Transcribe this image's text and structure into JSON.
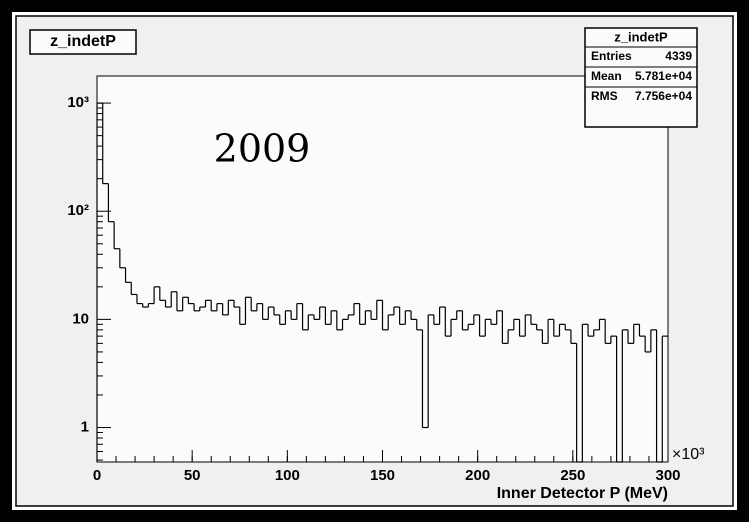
{
  "chart_data": {
    "type": "histogram",
    "title": "z_indetP",
    "annotation": "2009",
    "x_label": "Inner Detector P (MeV)",
    "x_multiplier": "×10³",
    "log_y": true,
    "color": "#000000",
    "xlim": [
      0,
      300
    ],
    "xticks": [
      0,
      50,
      100,
      150,
      200,
      250,
      300
    ],
    "ylim": [
      0.48,
      1780
    ],
    "yticks": [
      1,
      10,
      {
        "value": 100,
        "label": "10²"
      },
      {
        "value": 1000,
        "label": "10³"
      }
    ],
    "stats": {
      "title": "z_indetP",
      "rows": [
        [
          "Entries",
          "4339"
        ],
        [
          "Mean",
          "5.781e+04"
        ],
        [
          "RMS",
          "7.756e+04"
        ]
      ]
    },
    "bins": [
      0,
      3,
      6,
      9,
      12,
      15,
      18,
      21,
      24,
      27,
      30,
      33,
      36,
      39,
      42,
      45,
      48,
      51,
      54,
      57,
      60,
      63,
      66,
      69,
      72,
      75,
      78,
      81,
      84,
      87,
      90,
      93,
      96,
      99,
      102,
      105,
      108,
      111,
      114,
      117,
      120,
      123,
      126,
      129,
      132,
      135,
      138,
      141,
      144,
      147,
      150,
      153,
      156,
      159,
      162,
      165,
      168,
      171,
      174,
      177,
      180,
      183,
      186,
      189,
      192,
      195,
      198,
      201,
      204,
      207,
      210,
      213,
      216,
      219,
      222,
      225,
      228,
      231,
      234,
      237,
      240,
      243,
      246,
      249,
      252,
      255,
      258,
      261,
      264,
      267,
      270,
      273,
      276,
      279,
      282,
      285,
      288,
      291,
      294,
      297,
      300
    ],
    "values": [
      1000,
      180,
      80,
      45,
      30,
      22,
      17,
      14,
      13,
      14,
      20,
      15,
      13,
      18,
      12,
      16,
      14,
      12,
      13,
      15,
      12,
      14,
      11,
      15,
      13,
      9,
      16,
      12,
      14,
      10,
      13,
      11,
      9,
      12,
      10,
      14,
      8,
      11,
      10,
      13,
      9,
      12,
      8,
      10,
      11,
      14,
      9,
      12,
      10,
      15,
      8,
      11,
      13,
      9,
      12,
      10,
      8,
      1,
      11,
      9,
      13,
      7,
      10,
      12,
      8,
      9,
      11,
      7,
      10,
      9,
      12,
      6,
      8,
      10,
      7,
      11,
      9,
      8,
      6,
      10,
      7,
      9,
      8,
      6,
      0,
      9,
      7,
      8,
      10,
      6,
      7,
      0,
      8,
      6,
      9,
      7,
      5,
      8,
      0,
      7
    ]
  }
}
